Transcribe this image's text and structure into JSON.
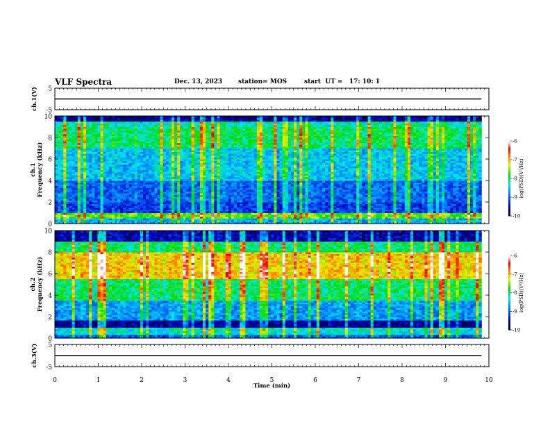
{
  "header": {
    "title": "VLF Spectra",
    "date": "Dec. 13, 2023",
    "station": "station= MOS",
    "start_ut": "start  UT =   17: 10: 1"
  },
  "chart_data": [
    {
      "type": "line",
      "panel": "ch1-waveform",
      "ylabel": "ch.1(V)",
      "ylim": [
        -5,
        5
      ],
      "y_ticks": [
        5,
        -5
      ],
      "xlim": [
        0,
        10
      ],
      "series": [
        {
          "x": [
            0,
            9.83
          ],
          "values": [
            0,
            0
          ]
        }
      ]
    },
    {
      "type": "heatmap",
      "panel": "ch1-spectrogram",
      "ylabel_lines": [
        "ch.1",
        "Frequency (kHz)"
      ],
      "ylim": [
        0,
        10
      ],
      "y_ticks": [
        0,
        2,
        4,
        6,
        8,
        10
      ],
      "xlim": [
        0,
        10
      ],
      "data_x_extent": [
        0,
        9.83
      ],
      "bands": [
        {
          "fmin": 0.0,
          "fmax": 0.5,
          "level": -8.6
        },
        {
          "fmin": 0.5,
          "fmax": 1.0,
          "level": -7.6
        },
        {
          "fmin": 1.0,
          "fmax": 2.0,
          "level": -9.2
        },
        {
          "fmin": 2.0,
          "fmax": 4.0,
          "level": -9.0
        },
        {
          "fmin": 4.0,
          "fmax": 7.0,
          "level": -8.5
        },
        {
          "fmin": 7.0,
          "fmax": 9.0,
          "level": -8.0
        },
        {
          "fmin": 9.0,
          "fmax": 9.5,
          "level": -8.2
        },
        {
          "fmin": 9.5,
          "fmax": 10.0,
          "level": -9.7
        }
      ],
      "colorbar": {
        "label": "log(PSD)(V²/Hz)",
        "range": [
          -10,
          -6
        ],
        "ticks": [
          -6,
          -7,
          -8,
          -9,
          -10
        ]
      }
    },
    {
      "type": "heatmap",
      "panel": "ch2-spectrogram",
      "ylabel_lines": [
        "ch.2",
        "Frequency (kHz)"
      ],
      "ylim": [
        0,
        10
      ],
      "y_ticks": [
        0,
        2,
        4,
        6,
        8,
        10
      ],
      "xlim": [
        0,
        10
      ],
      "data_x_extent": [
        0,
        9.83
      ],
      "bands": [
        {
          "fmin": 0.0,
          "fmax": 0.3,
          "level": -9.0
        },
        {
          "fmin": 0.3,
          "fmax": 1.0,
          "level": -8.3
        },
        {
          "fmin": 1.0,
          "fmax": 1.7,
          "level": -9.7
        },
        {
          "fmin": 1.7,
          "fmax": 3.5,
          "level": -8.7
        },
        {
          "fmin": 3.5,
          "fmax": 5.5,
          "level": -8.0
        },
        {
          "fmin": 5.5,
          "fmax": 8.0,
          "level": -7.1
        },
        {
          "fmin": 8.0,
          "fmax": 9.0,
          "level": -8.0
        },
        {
          "fmin": 9.0,
          "fmax": 10.0,
          "level": -9.6
        }
      ],
      "colorbar": {
        "label": "log(PSD)(V²/Hz)",
        "range": [
          -10,
          -6
        ],
        "ticks": [
          -6,
          -7,
          -8,
          -9,
          -10
        ]
      }
    },
    {
      "type": "line",
      "panel": "ch3-waveform",
      "ylabel": "ch.3(V)",
      "ylim": [
        -5,
        5
      ],
      "y_ticks": [
        5,
        -5
      ],
      "xlim": [
        0,
        10
      ],
      "xlabel": "Time  (min)",
      "x_ticks": [
        0,
        1,
        2,
        3,
        4,
        5,
        6,
        7,
        8,
        9,
        10
      ],
      "series": [
        {
          "x": [
            0,
            9.83
          ],
          "values": [
            0,
            0
          ]
        }
      ]
    }
  ]
}
